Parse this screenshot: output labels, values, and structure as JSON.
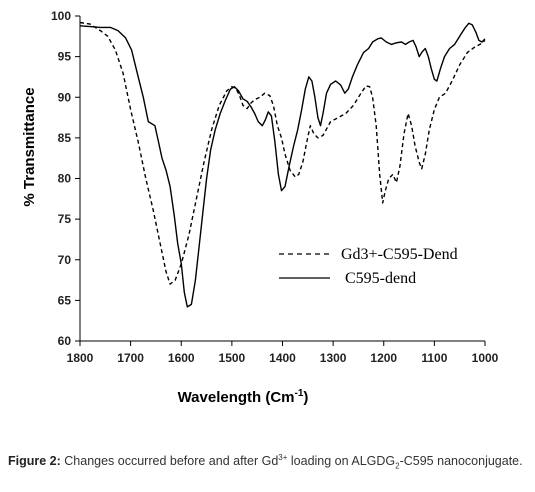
{
  "chart_data": {
    "type": "line",
    "title": "",
    "xlabel": "Wavelength (Cm",
    "xlabel_sup": "-1",
    "xlabel_close": ")",
    "ylabel": "% Transmittance",
    "xlim": [
      1800,
      1000
    ],
    "ylim": [
      60,
      100
    ],
    "x_inverted": true,
    "xticks": [
      1800,
      1700,
      1600,
      1500,
      1400,
      1300,
      1200,
      1100,
      1000
    ],
    "yticks": [
      60,
      65,
      70,
      75,
      80,
      85,
      90,
      95,
      100
    ],
    "grid": false,
    "legend_position": "center-right",
    "series": [
      {
        "name": "Gd3+-C595-Dend",
        "style": "dashed",
        "color": "#000000",
        "points": [
          [
            1800,
            99.2
          ],
          [
            1780,
            99.0
          ],
          [
            1760,
            98.2
          ],
          [
            1745,
            97.5
          ],
          [
            1730,
            95.8
          ],
          [
            1715,
            93.0
          ],
          [
            1700,
            88.5
          ],
          [
            1685,
            84.5
          ],
          [
            1670,
            80.0
          ],
          [
            1655,
            76.0
          ],
          [
            1640,
            71.5
          ],
          [
            1630,
            68.5
          ],
          [
            1622,
            67.0
          ],
          [
            1612,
            67.5
          ],
          [
            1600,
            69.5
          ],
          [
            1585,
            73.0
          ],
          [
            1570,
            77.5
          ],
          [
            1555,
            82.0
          ],
          [
            1540,
            86.0
          ],
          [
            1525,
            89.0
          ],
          [
            1510,
            90.8
          ],
          [
            1500,
            91.3
          ],
          [
            1492,
            91.1
          ],
          [
            1485,
            90.2
          ],
          [
            1478,
            89.0
          ],
          [
            1470,
            88.6
          ],
          [
            1462,
            89.3
          ],
          [
            1455,
            89.7
          ],
          [
            1445,
            90.0
          ],
          [
            1435,
            90.5
          ],
          [
            1425,
            90.2
          ],
          [
            1418,
            89.0
          ],
          [
            1410,
            86.5
          ],
          [
            1402,
            85.0
          ],
          [
            1395,
            83.0
          ],
          [
            1385,
            81.0
          ],
          [
            1375,
            80.2
          ],
          [
            1368,
            80.5
          ],
          [
            1360,
            82.0
          ],
          [
            1352,
            84.5
          ],
          [
            1345,
            86.5
          ],
          [
            1338,
            85.5
          ],
          [
            1330,
            85.0
          ],
          [
            1320,
            85.3
          ],
          [
            1305,
            87.0
          ],
          [
            1290,
            87.5
          ],
          [
            1275,
            88.0
          ],
          [
            1260,
            89.0
          ],
          [
            1245,
            90.5
          ],
          [
            1235,
            91.4
          ],
          [
            1228,
            91.3
          ],
          [
            1222,
            90.0
          ],
          [
            1215,
            86.5
          ],
          [
            1208,
            80.5
          ],
          [
            1202,
            77.0
          ],
          [
            1197,
            78.5
          ],
          [
            1190,
            80.0
          ],
          [
            1182,
            80.5
          ],
          [
            1175,
            79.5
          ],
          [
            1168,
            81.5
          ],
          [
            1160,
            85.5
          ],
          [
            1152,
            88.0
          ],
          [
            1145,
            86.5
          ],
          [
            1138,
            84.0
          ],
          [
            1130,
            82.0
          ],
          [
            1125,
            81.2
          ],
          [
            1118,
            83.0
          ],
          [
            1110,
            86.0
          ],
          [
            1100,
            88.5
          ],
          [
            1090,
            90.0
          ],
          [
            1078,
            90.5
          ],
          [
            1065,
            92.0
          ],
          [
            1050,
            94.0
          ],
          [
            1035,
            95.5
          ],
          [
            1020,
            96.2
          ],
          [
            1010,
            96.5
          ],
          [
            1000,
            97.0
          ]
        ]
      },
      {
        "name": "C595-dend",
        "style": "solid",
        "color": "#000000",
        "points": [
          [
            1800,
            98.8
          ],
          [
            1780,
            98.7
          ],
          [
            1760,
            98.6
          ],
          [
            1740,
            98.6
          ],
          [
            1725,
            98.2
          ],
          [
            1710,
            97.3
          ],
          [
            1698,
            95.8
          ],
          [
            1685,
            92.5
          ],
          [
            1675,
            90.0
          ],
          [
            1665,
            87.0
          ],
          [
            1652,
            86.5
          ],
          [
            1645,
            84.5
          ],
          [
            1638,
            82.5
          ],
          [
            1630,
            81.0
          ],
          [
            1622,
            79.0
          ],
          [
            1614,
            75.5
          ],
          [
            1607,
            72.0
          ],
          [
            1600,
            69.5
          ],
          [
            1594,
            66.0
          ],
          [
            1588,
            64.2
          ],
          [
            1580,
            64.5
          ],
          [
            1572,
            67.5
          ],
          [
            1565,
            71.5
          ],
          [
            1557,
            76.0
          ],
          [
            1550,
            80.0
          ],
          [
            1542,
            83.5
          ],
          [
            1533,
            86.0
          ],
          [
            1523,
            88.0
          ],
          [
            1513,
            89.6
          ],
          [
            1503,
            91.0
          ],
          [
            1495,
            91.3
          ],
          [
            1487,
            90.8
          ],
          [
            1478,
            89.8
          ],
          [
            1470,
            89.5
          ],
          [
            1462,
            88.8
          ],
          [
            1455,
            88.0
          ],
          [
            1448,
            87.0
          ],
          [
            1440,
            86.5
          ],
          [
            1434,
            87.2
          ],
          [
            1428,
            88.2
          ],
          [
            1422,
            87.7
          ],
          [
            1415,
            84.5
          ],
          [
            1408,
            80.5
          ],
          [
            1402,
            78.5
          ],
          [
            1395,
            79.0
          ],
          [
            1387,
            81.5
          ],
          [
            1378,
            84.0
          ],
          [
            1370,
            86.0
          ],
          [
            1362,
            88.5
          ],
          [
            1355,
            91.0
          ],
          [
            1348,
            92.5
          ],
          [
            1342,
            92.0
          ],
          [
            1336,
            90.0
          ],
          [
            1330,
            87.5
          ],
          [
            1325,
            86.5
          ],
          [
            1320,
            88.0
          ],
          [
            1313,
            90.5
          ],
          [
            1305,
            91.6
          ],
          [
            1295,
            92.0
          ],
          [
            1285,
            91.5
          ],
          [
            1277,
            90.5
          ],
          [
            1270,
            91.0
          ],
          [
            1262,
            92.5
          ],
          [
            1252,
            94.0
          ],
          [
            1240,
            95.5
          ],
          [
            1230,
            96.0
          ],
          [
            1222,
            96.8
          ],
          [
            1212,
            97.2
          ],
          [
            1205,
            97.3
          ],
          [
            1195,
            96.8
          ],
          [
            1185,
            96.5
          ],
          [
            1175,
            96.7
          ],
          [
            1165,
            96.8
          ],
          [
            1157,
            96.5
          ],
          [
            1150,
            96.8
          ],
          [
            1142,
            97.0
          ],
          [
            1136,
            96.2
          ],
          [
            1130,
            95.0
          ],
          [
            1124,
            95.6
          ],
          [
            1118,
            96.0
          ],
          [
            1112,
            95.0
          ],
          [
            1106,
            93.5
          ],
          [
            1100,
            92.2
          ],
          [
            1095,
            92.0
          ],
          [
            1088,
            93.5
          ],
          [
            1080,
            95.0
          ],
          [
            1070,
            96.0
          ],
          [
            1060,
            96.5
          ],
          [
            1050,
            97.5
          ],
          [
            1040,
            98.5
          ],
          [
            1032,
            99.1
          ],
          [
            1025,
            98.9
          ],
          [
            1018,
            98.0
          ],
          [
            1012,
            97.0
          ],
          [
            1006,
            96.8
          ],
          [
            1000,
            97.2
          ]
        ]
      }
    ]
  },
  "caption": {
    "label": "Figure 2:",
    "text_1": " Changes occurred before and after Gd",
    "sup": "3+",
    "text_2": " loading on ALGDG",
    "sub": "2",
    "text_3": "-C595 nanoconjugate."
  }
}
